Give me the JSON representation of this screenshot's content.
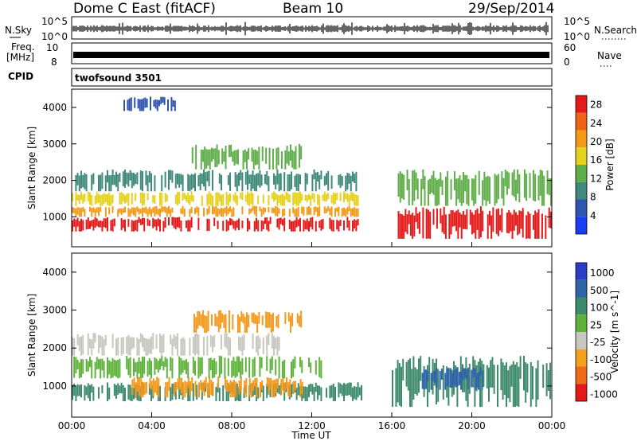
{
  "header": {
    "station": "Dome C East (fitACF)",
    "beam": "Beam 10",
    "date": "29/Sep/2014"
  },
  "top_panels": {
    "nsky_label": "N.Sky",
    "nsearch_label": "N.Search",
    "nsky_ticks": [
      "10^5",
      "10^0"
    ],
    "freq_label_1": "Freq.",
    "freq_label_2": "[MHz]",
    "freq_ticks": [
      "10",
      "8"
    ],
    "nave_label": "Nave",
    "nave_ticks": [
      "60",
      "0"
    ],
    "cpid_label": "CPID",
    "cpid_value": "twofsound 3501"
  },
  "time_axis": {
    "label": "Time UT",
    "ticks": [
      "00:00",
      "04:00",
      "08:00",
      "12:00",
      "16:00",
      "20:00",
      "00:00"
    ]
  },
  "chart_data": [
    {
      "type": "heatmap",
      "title": "",
      "xlabel": "Time UT",
      "ylabel": "Slant Range [km]",
      "xlim": [
        0,
        24
      ],
      "ylim": [
        180,
        4500
      ],
      "y_ticks": [
        1000,
        2000,
        3000,
        4000
      ],
      "colorbar": {
        "label": "Power [dB]",
        "ticks": [
          4,
          8,
          12,
          16,
          20,
          24,
          28
        ],
        "range": [
          0,
          30
        ],
        "colors": [
          "#1a3cf5",
          "#2f55b0",
          "#3f8a7a",
          "#5fae4a",
          "#e6d21e",
          "#f39a18",
          "#ee6417",
          "#e41a1a"
        ]
      },
      "bands": [
        {
          "t0": 0.0,
          "t1": 14.3,
          "r0": 600,
          "r1": 1000,
          "level": 27
        },
        {
          "t0": 0.0,
          "t1": 14.3,
          "r0": 1000,
          "r1": 1300,
          "level": 20
        },
        {
          "t0": 0.0,
          "t1": 14.3,
          "r0": 1300,
          "r1": 1700,
          "level": 16
        },
        {
          "t0": 0.0,
          "t1": 14.3,
          "r0": 1700,
          "r1": 2300,
          "level": 9
        },
        {
          "t0": 2.5,
          "t1": 5.2,
          "r0": 3900,
          "r1": 4300,
          "level": 6
        },
        {
          "t0": 6.0,
          "t1": 11.5,
          "r0": 2300,
          "r1": 3000,
          "level": 14
        },
        {
          "t0": 16.3,
          "t1": 24.0,
          "r0": 400,
          "r1": 1300,
          "level": 28
        },
        {
          "t0": 16.3,
          "t1": 24.0,
          "r0": 1300,
          "r1": 2300,
          "level": 12
        }
      ]
    },
    {
      "type": "heatmap",
      "title": "",
      "xlabel": "Time UT",
      "ylabel": "Slant Range [km]",
      "xlim": [
        0,
        24
      ],
      "ylim": [
        180,
        4500
      ],
      "y_ticks": [
        1000,
        2000,
        3000,
        4000
      ],
      "colorbar": {
        "label": "Velocity [m s^-1]",
        "ticks": [
          1000,
          500,
          100,
          25,
          -25,
          -100,
          -500,
          -1000
        ],
        "colors": [
          "#2a3dc8",
          "#2f64a8",
          "#3e8a6c",
          "#5fb33c",
          "#c8c8c0",
          "#f3a21e",
          "#ee6c17",
          "#e41a1a"
        ]
      },
      "bands": [
        {
          "t0": 0.0,
          "t1": 14.5,
          "r0": 600,
          "r1": 1100,
          "level": "#3e8a6c"
        },
        {
          "t0": 3.0,
          "t1": 11.5,
          "r0": 700,
          "r1": 1250,
          "level": "#f39a1e"
        },
        {
          "t0": 0.0,
          "t1": 12.5,
          "r0": 1200,
          "r1": 1800,
          "level": "#5fb33c"
        },
        {
          "t0": 0.0,
          "t1": 10.5,
          "r0": 1800,
          "r1": 2400,
          "level": "#c8c8c0"
        },
        {
          "t0": 6.0,
          "t1": 11.5,
          "r0": 2400,
          "r1": 3000,
          "level": "#f39a1e"
        },
        {
          "t0": 16.0,
          "t1": 24.0,
          "r0": 450,
          "r1": 1800,
          "level": "#3e8a6c"
        },
        {
          "t0": 17.5,
          "t1": 20.5,
          "r0": 900,
          "r1": 1500,
          "level": "#2f64a8"
        }
      ]
    }
  ]
}
